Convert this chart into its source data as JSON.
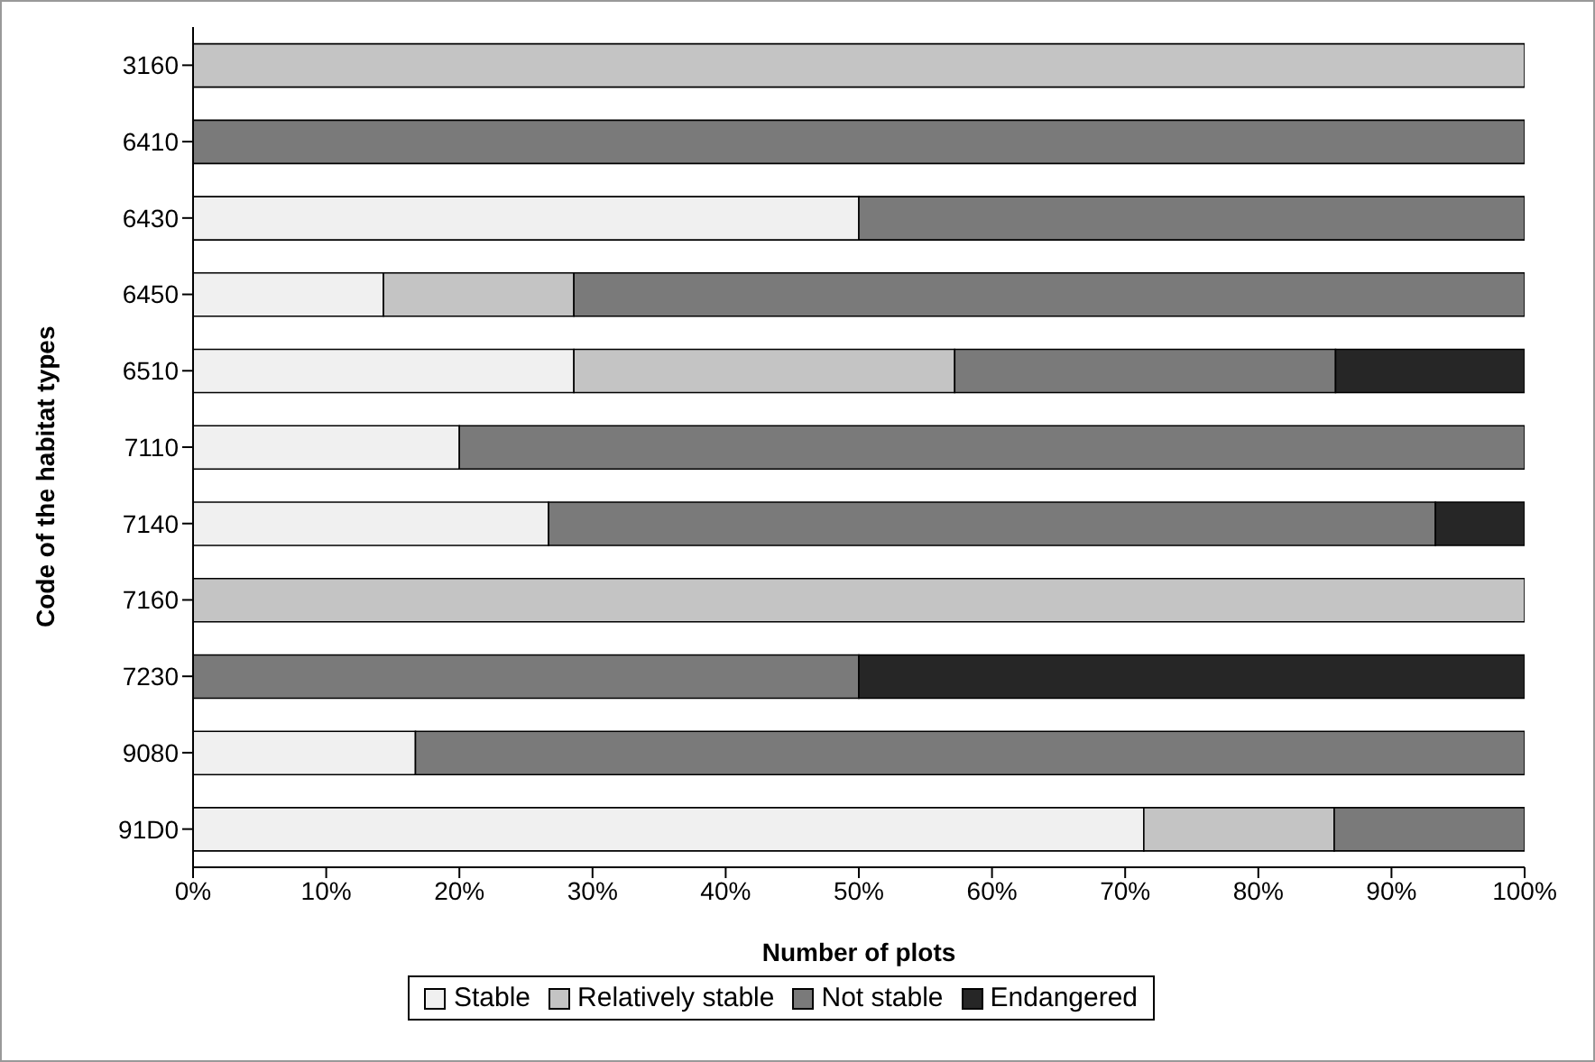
{
  "chart_data": {
    "type": "bar",
    "orientation": "horizontal",
    "stacked": true,
    "xlabel": "Number of plots",
    "ylabel": "Code of the habitat types",
    "categories": [
      "3160",
      "6410",
      "6430",
      "6450",
      "6510",
      "7110",
      "7140",
      "7160",
      "7230",
      "9080",
      "91D0"
    ],
    "series": [
      {
        "name": "Stable",
        "color": "#f0f0f0",
        "values": [
          0,
          0,
          50,
          14.3,
          28.6,
          20,
          26.7,
          0,
          0,
          16.7,
          71.4
        ]
      },
      {
        "name": "Relatively stable",
        "color": "#c4c4c4",
        "values": [
          100,
          0,
          0,
          14.3,
          28.6,
          0,
          0,
          100,
          0,
          0,
          14.3
        ]
      },
      {
        "name": "Not stable",
        "color": "#7a7a7a",
        "values": [
          0,
          100,
          50,
          71.4,
          28.6,
          80,
          66.6,
          0,
          50,
          83.3,
          14.3
        ]
      },
      {
        "name": "Endangered",
        "color": "#262626",
        "values": [
          0,
          0,
          0,
          0,
          14.3,
          0,
          6.7,
          0,
          50,
          0,
          0
        ]
      }
    ],
    "xlim": [
      0,
      100
    ],
    "xticks": [
      {
        "value": 0,
        "label": "0%"
      },
      {
        "value": 10,
        "label": "10%"
      },
      {
        "value": 20,
        "label": "20%"
      },
      {
        "value": 30,
        "label": "30%"
      },
      {
        "value": 40,
        "label": "40%"
      },
      {
        "value": 50,
        "label": "50%"
      },
      {
        "value": 60,
        "label": "60%"
      },
      {
        "value": 70,
        "label": "70%"
      },
      {
        "value": 80,
        "label": "80%"
      },
      {
        "value": 90,
        "label": "90%"
      },
      {
        "value": 100,
        "label": "100%"
      }
    ],
    "grid": false,
    "legend": "bottom"
  }
}
